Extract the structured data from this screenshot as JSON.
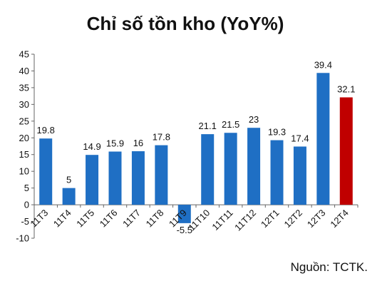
{
  "chart_data": {
    "type": "bar",
    "title": "Chỉ số tồn kho (YoY%)",
    "source": "Nguồn: TCTK.",
    "categories": [
      "11T3",
      "11T4",
      "11T5",
      "11T6",
      "11T7",
      "11T8",
      "11T9",
      "11T10",
      "11T11",
      "11T12",
      "12T1",
      "12T2",
      "12T3",
      "12T4"
    ],
    "values": [
      19.8,
      5,
      14.9,
      15.9,
      16,
      17.8,
      -5.5,
      21.1,
      21.5,
      23,
      19.3,
      17.4,
      39.4,
      32.1
    ],
    "value_labels": [
      "19.8",
      "5",
      "14.9",
      "15.9",
      "16",
      "17.8",
      "-5.5",
      "21.1",
      "21.5",
      "23",
      "19.3",
      "17.4",
      "39.4",
      "32.1"
    ],
    "ylim": [
      -10,
      45
    ],
    "yticks": [
      -10,
      -5,
      0,
      5,
      10,
      15,
      20,
      25,
      30,
      35,
      40,
      45
    ],
    "bar_color": "#1f6fc4",
    "highlight_color": "#c00000",
    "highlight_index": 13,
    "grid": false,
    "xlabel": "",
    "ylabel": ""
  }
}
